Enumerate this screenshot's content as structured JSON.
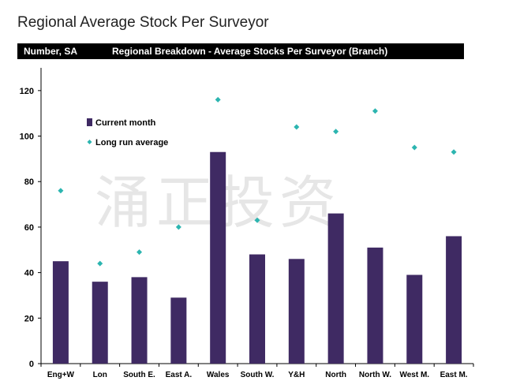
{
  "page": {
    "title": "Regional Average Stock Per Surveyor"
  },
  "header": {
    "left": "Number, SA",
    "center": "Regional Breakdown - Average Stocks Per Surveyor (Branch)"
  },
  "watermark": "涌正投资",
  "colors": {
    "bar": "#3f2a63",
    "marker": "#2cb5b0",
    "header_bg": "#000000"
  },
  "chart_data": {
    "type": "bar",
    "categories": [
      "Eng+W",
      "Lon",
      "South E.",
      "East A.",
      "Wales",
      "South W.",
      "Y&H",
      "North",
      "North W.",
      "West M.",
      "East M."
    ],
    "series": [
      {
        "name": "Current month",
        "type": "bar",
        "values": [
          45,
          36,
          38,
          29,
          93,
          48,
          46,
          66,
          51,
          39,
          56
        ]
      },
      {
        "name": "Long run average",
        "type": "scatter",
        "values": [
          76,
          44,
          49,
          60,
          116,
          63,
          104,
          102,
          111,
          95,
          93
        ]
      }
    ],
    "yticks": [
      0,
      20,
      40,
      60,
      80,
      100,
      120
    ],
    "ylim": [
      0,
      130
    ],
    "legend": "top-left",
    "grid": false
  }
}
